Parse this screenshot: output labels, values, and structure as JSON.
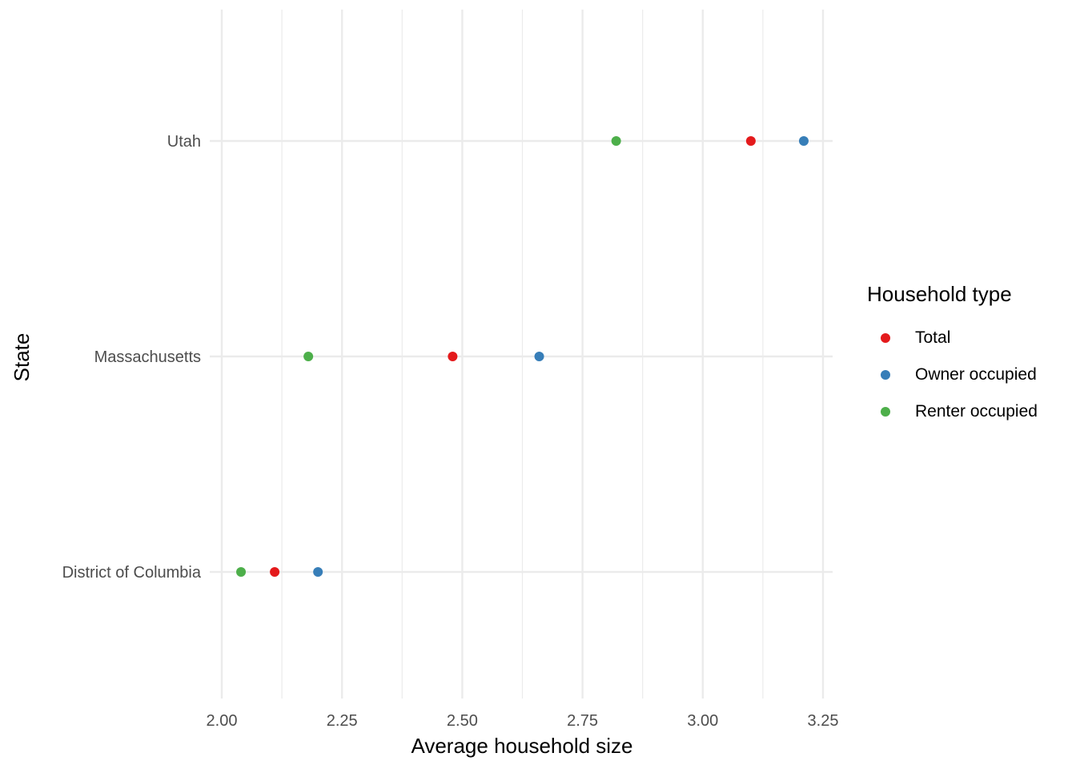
{
  "chart_data": {
    "type": "scatter",
    "title": "",
    "xlabel": "Average household size",
    "ylabel": "State",
    "xlim": [
      2.0,
      3.27
    ],
    "x_ticks": [
      "2.00",
      "2.25",
      "2.50",
      "2.75",
      "3.00",
      "3.25"
    ],
    "categories": [
      "District of Columbia",
      "Massachusetts",
      "Utah"
    ],
    "grid": true,
    "legend": {
      "title": "Household type",
      "position": "right"
    },
    "series": [
      {
        "name": "Total",
        "color": "#e41a1c",
        "values": [
          2.11,
          2.48,
          3.1
        ]
      },
      {
        "name": "Owner occupied",
        "color": "#377eb8",
        "values": [
          2.2,
          2.66,
          3.21
        ]
      },
      {
        "name": "Renter occupied",
        "color": "#4daf4a",
        "values": [
          2.04,
          2.18,
          2.82
        ]
      }
    ]
  }
}
